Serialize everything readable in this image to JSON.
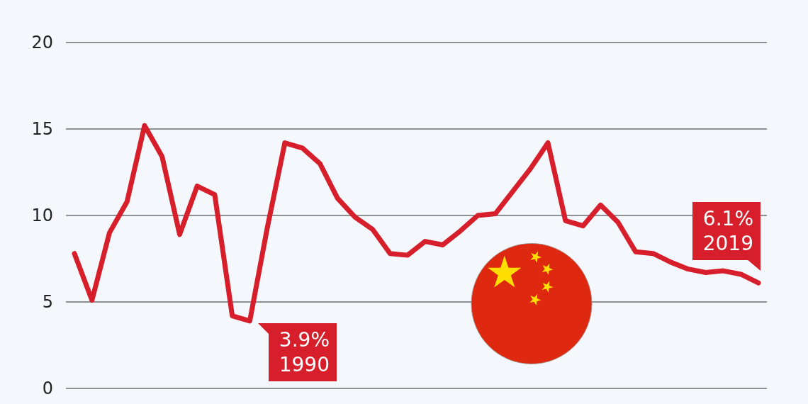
{
  "chart_data": {
    "type": "line",
    "categories": [
      null,
      null,
      null,
      null,
      null,
      null,
      null,
      null,
      null,
      null,
      null,
      null,
      null,
      null,
      null,
      null,
      null,
      null,
      null,
      null,
      null,
      null,
      null,
      null,
      null,
      null,
      null,
      null,
      null,
      null,
      null,
      null,
      null,
      null,
      null,
      null,
      null,
      null,
      null,
      null
    ],
    "values": [
      7.8,
      5.1,
      9.0,
      10.8,
      15.2,
      13.4,
      8.9,
      11.7,
      11.2,
      4.2,
      3.9,
      9.3,
      14.2,
      13.9,
      13.0,
      11.0,
      9.9,
      9.2,
      7.8,
      7.7,
      8.5,
      8.3,
      9.1,
      10.0,
      10.1,
      11.4,
      12.7,
      14.2,
      9.7,
      9.4,
      10.6,
      9.6,
      7.9,
      7.8,
      7.3,
      6.9,
      6.7,
      6.8,
      6.6,
      6.1
    ],
    "color": "#d71f2b",
    "ylim": [
      0,
      20
    ],
    "yticks": [
      0,
      5,
      10,
      15,
      20
    ],
    "grid": "y",
    "tick_labels": "y",
    "annotations": [
      "3.9%\n1990",
      "6.1%\n2019"
    ]
  }
}
